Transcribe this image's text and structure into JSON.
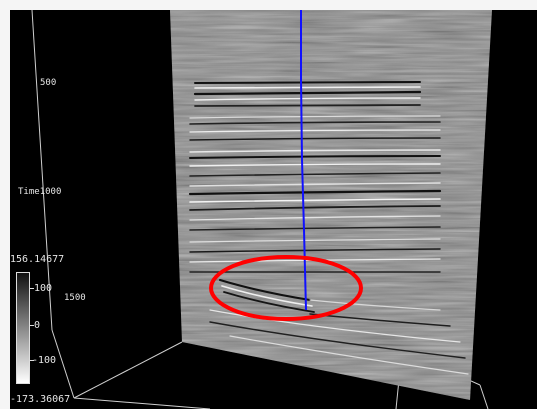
{
  "scene": {
    "background_color": "#000000",
    "panel_color": "#8a8a8a",
    "well_color": "#1010ff",
    "highlight_color": "#ff0000"
  },
  "axis": {
    "tick_500": "500",
    "tick_1000": "1000",
    "tick_1500": "1500",
    "time_label": "Time"
  },
  "colorbar": {
    "max_label": "156.14677",
    "min_label": "-173.36067",
    "tick_100": "100",
    "tick_0": "0",
    "tick_neg100": "-100"
  }
}
